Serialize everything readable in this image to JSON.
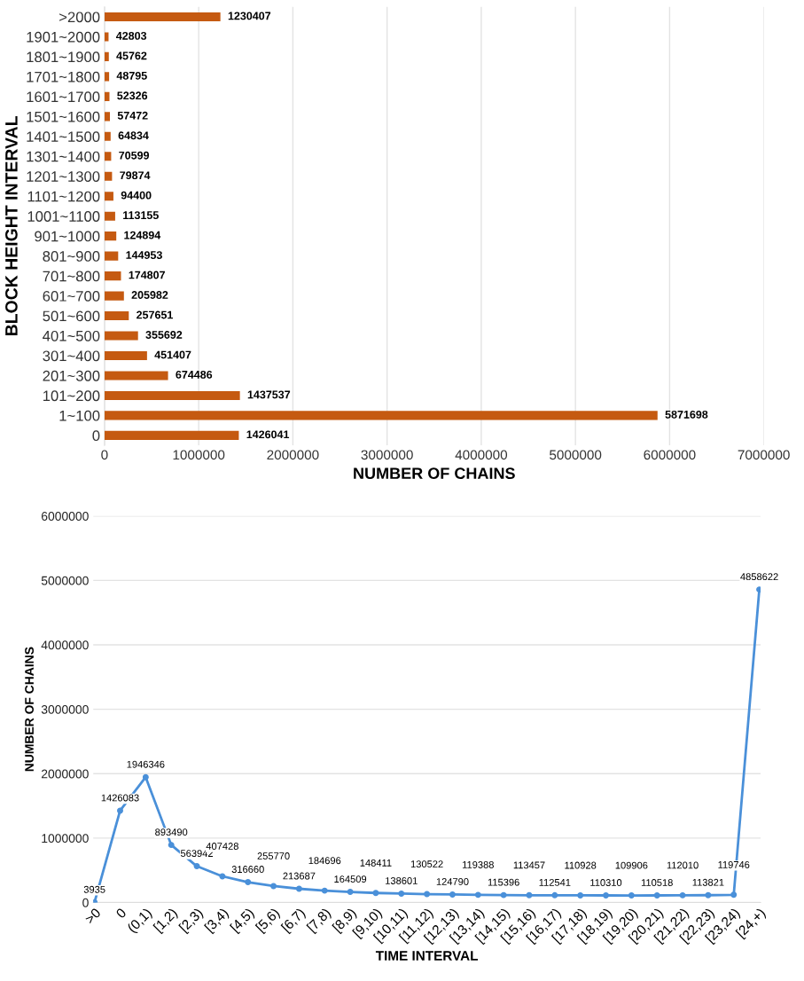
{
  "chart_data": [
    {
      "type": "bar",
      "orientation": "horizontal",
      "xlabel": "NUMBER OF CHAINS",
      "ylabel": "BLOCK HEIGHT INTERVAL",
      "categories": [
        ">2000",
        "1901~2000",
        "1801~1900",
        "1701~1800",
        "1601~1700",
        "1501~1600",
        "1401~1500",
        "1301~1400",
        "1201~1300",
        "1101~1200",
        "1001~1100",
        "901~1000",
        "801~900",
        "701~800",
        "601~700",
        "501~600",
        "401~500",
        "301~400",
        "201~300",
        "101~200",
        "1~100",
        "0"
      ],
      "values": [
        1230407,
        42803,
        45762,
        48795,
        52326,
        57472,
        64834,
        70599,
        79874,
        94400,
        113155,
        124894,
        144953,
        174807,
        205982,
        257651,
        355692,
        451407,
        674486,
        1437537,
        5871698,
        1426041
      ],
      "color": "#c55a11",
      "data_labels": true,
      "xlim": [
        0,
        7000000
      ],
      "xticks": [
        0,
        1000000,
        2000000,
        3000000,
        4000000,
        5000000,
        6000000,
        7000000
      ],
      "grid": "x"
    },
    {
      "type": "line",
      "xlabel": "TIME INTERVAL",
      "ylabel": "NUMBER OF CHAINS",
      "categories": [
        ">0",
        "0",
        "(0,1)",
        "[1,2)",
        "[2,3)",
        "[3,4)",
        "[4,5)",
        "[5,6)",
        "[6,7)",
        "[7,8)",
        "[8,9)",
        "[9,10)",
        "[10,11)",
        "[11,12)",
        "[12,13)",
        "[13,14)",
        "[14,15)",
        "[15,16)",
        "[16,17)",
        "[17,18)",
        "[18,19)",
        "[19,20)",
        "[20,21)",
        "[21,22)",
        "[22,23)",
        "[23,24)",
        "[24,+)"
      ],
      "values": [
        3935,
        1426083,
        1946346,
        893490,
        563942,
        407428,
        316660,
        255770,
        213687,
        184696,
        164509,
        148411,
        138601,
        130522,
        124790,
        119388,
        115396,
        113457,
        112541,
        110928,
        110310,
        109906,
        110518,
        112010,
        113821,
        119746,
        4858622
      ],
      "color": "#4a90d9",
      "marker": "circle",
      "line_style": "solid",
      "data_labels": true,
      "ylim": [
        0,
        6000000
      ],
      "yticks": [
        0,
        1000000,
        2000000,
        3000000,
        4000000,
        5000000,
        6000000
      ],
      "grid": "y"
    }
  ]
}
